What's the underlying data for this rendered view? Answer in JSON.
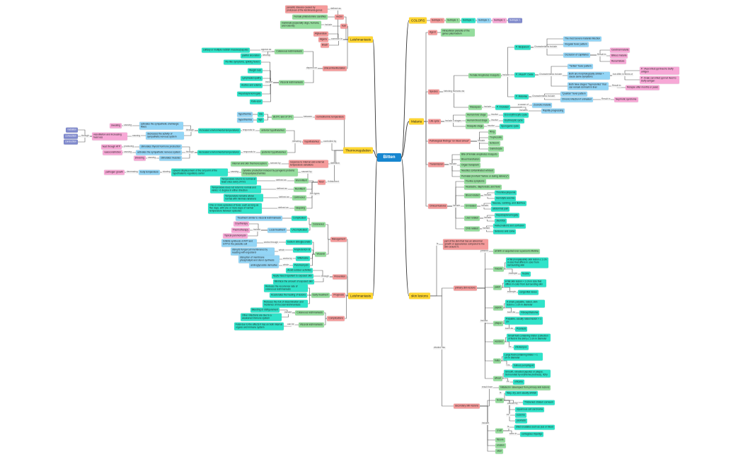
{
  "mindmap": {
    "nodes": {
      "bitten": "Bitten",
      "colors": "COLORS",
      "st1": "Subtopic 1",
      "st2": "Subtopic 1",
      "st3": "Subtopic 1",
      "st4": "Subtopic 1",
      "st5": "Subtopic 1",
      "st6": "Subtopic 1",
      "malaria": "Malaria",
      "skin": "skin lesions",
      "agent": "Agent",
      "agent_d": "intracellular parasite of the genus plasmodium",
      "species": "Species",
      "anoph": "Female Anopheles mosquito",
      "macaques": "Macaques",
      "pfalc": "P. falciparum",
      "pvivax": "P. Vivax/P. Ovale",
      "pmal": "P. Malariae",
      "pf1": "The most severe malarial infection",
      "pf2": "Irregular fever pattern",
      "pf3": "Occlusion of capillaries",
      "pf3a": "Cerebral malaria",
      "pf3b": "Bilious malaria",
      "pf3c": "Renal failure",
      "pv1": "\"Tertian\" fever pattern",
      "pv2": "Both are morphologically similar + cause same symptoms",
      "pv3": "Both have stages \"hypnozoites\" that can remain dormant in liver",
      "pv2a": "P. Vivax infect ppl lived to Duffy antigen",
      "pv2b": "P. Ovale can infect ppl not lived to Duffy antigen",
      "pv3a": "Relapse after months or years",
      "pm1": "\"Quartan\" fever pattern",
      "pm2": "Chronic infection if untreated",
      "pm2a": "Nephrotic syndrome",
      "pk": "P. Knowlesi",
      "pk1": "Zoonotic malaria",
      "pk2": "Rapidly progressing",
      "life": "Life cycle",
      "lc1": "Human liver stage",
      "lc2": "Human blood stage",
      "lc3": "Mosquito stage",
      "lc1a": "Exo-erythrocytic cycle",
      "lc2a": "Erythrocytic cycle",
      "lc3a": "Sporogonic cycle",
      "path": "Pathological findings \"on blood smear\"",
      "pa1": "Ring",
      "pa2": "Trophozoite",
      "pa3": "Schizont",
      "pa4": "Gametocyte",
      "trans": "Transmission",
      "tr1": "Bite of female anopheles mosquito",
      "tr2": "Blood transfusion",
      "tr3": "Organ transplant",
      "tr4": "Needles contaminated w/blood",
      "tr5": "Perinatal (in infant \"before or during delivery\")",
      "clin": "Clinical features",
      "cf1": "Flu-like symptoms",
      "cf2": "Headache, diaphoresis, and fever",
      "cf3": "Blood related",
      "cf3a": "Thrombocytopenia",
      "cf3b": "Hemolytic anemia",
      "cf4": "GI related",
      "cf4a": "Nausea, vomiting, and diarrhea",
      "cf4b": "abdominal pain",
      "cf5": "Liver related",
      "cf5a": "Hepatosplenomegaly",
      "cf5b": "Jaundice",
      "cf6": "CNS related",
      "cf6a": "Hallucinations and confusion",
      "cf6b": "Seizures and coma",
      "sk_d": "part of the skin that has an abnormal growth or appearance compared to the skin around it.",
      "prim": "primary skin lesions",
      "sec": "secondary skin lesions",
      "pr0": "at birth or acquired over a person's lifetime",
      "mac": "macule",
      "mac_d": "A flat (nonpalpable) skin lesion ≤ 1 cm in size that differs in color from surrounding skin",
      "mac_e": "freckle",
      "pat": "patch",
      "pat_d": "A flat skin lesion > 1 cm in size that differs in color from surrounding skin",
      "pat_e": "congenital nevus",
      "pap": "papule",
      "pap_d": "A small, palpable, raised, skin lesion ≤ 1 cm in diameter",
      "pap_e": "Fibroepithelioma",
      "pla": "plaque",
      "pla_d": "Palpable, usually raised lesion > 1 cm",
      "pla_e": "Psoriasis",
      "ves": "vesicles",
      "ves_d": "Small fluid-containing blister (collection of fluid in the skin) ≤ 1 cm in diameter",
      "ves_e": "chickenpox",
      "bul": "bulla",
      "bul_d": "Large fluid-containing blister > 1 cm in diameter",
      "bul_e": "bullous pemphigoid",
      "whe": "wheal",
      "whe_d": "Smooth, elevated papules or plaque. Surrounded by erythema (redness), itchy",
      "whe_e": "urticaria",
      "se0": "Initiated in /developed from primary skin lesions",
      "sca": "Scale",
      "sca_d": "flaky, dry, and usually whitish",
      "sca_c": "Thickened stratum corneum",
      "sca_e1": "squamous cell carcinoma",
      "sca_e2": "eczema",
      "sca_e3": "psoriasis",
      "cru": "crust",
      "cru_d": "dried exudates such as pus or blood",
      "cru_e": "contagious impetigo",
      "fis": "fissure",
      "ero": "erosion",
      "ulc": "ulcer",
      "leish1": "Leishmaniasis",
      "l_def": "parasitic disease caused by protozoan of the leishmania genus",
      "l_vec": "vector",
      "l_vec_d": "Female phlebotomine sandflies",
      "l_host": "host",
      "l_host_d": "mammals (especially dogs, humans, and rodents)",
      "l_afg": "Afghanistan",
      "l_alg": "Algeria",
      "l_bra": "Brazil",
      "l_clin": "clinical Manifestation",
      "l_cut": "Cutaneous leishmaniasis",
      "l_vis": "Visceral leishmaniasis",
      "l_cut1": "solitary or multiple reddish macules/papules",
      "l_cut2": "painful ulceration",
      "l_v1": "Flu-like symptoms, spiking fevers",
      "l_v2": "Weight loss",
      "l_v3": "Lymphadenopathy",
      "l_v4": "Ascites and edema",
      "l_v5": "Hepatosplenomegaly",
      "l_v6": "Kala-azar",
      "thermo": "Thermoregulation",
      "t_norm": "normothermic temperature",
      "t_range": "36.5ºC and 37.5ºC",
      "t_low": "low",
      "t_high": "high",
      "t_hypo": "hypothermia",
      "t_hyper": "hyperthermia",
      "t_hyp": "hypothalamus",
      "t_ant": "anterior hypothalamus",
      "t_post": "posterior hypothalamus",
      "t_inc": "increased environmental temperatures",
      "t_dec": "decreased environmental temperatures",
      "t_resp": "response to internal and external temperature variations",
      "t_rec": "internal and skin thermoreceptors",
      "t_fever": "fever",
      "t_cyt": "cytokine production induced by pyrogenic proteins in lipopolysaccharides",
      "t_up": "upward displacement of the set point of the hypothalamic regulatory center",
      "t_body": "body temperature",
      "t_path": "pathogen growth",
      "t_int": "intermittent",
      "t_int_d": "Temperature returns to normal at least once every 24 hrs",
      "t_rem": "Remittent",
      "t_rem_d": "Temperature does not return to normal and varies >1 degree in either direction",
      "t_con": "continuous",
      "t_con_d": "Temperature remains above normal with minimal variations",
      "t_rel": "relapsing",
      "t_rel_d": "One or more episodes of fever, each as long as five days, with one or more days of normal temperature between episodes",
      "t_sweat": "sweating",
      "t_sym": "activates the sympathetic cholinergic fibers",
      "t_dsym": "decreases the activity of sympathetic nervous system",
      "t_vaso": "vasodilation and increasing heat loss",
      "t_rad": "radiation",
      "t_conv": "convection",
      "t_cond": "conduction",
      "t_atp": "heat through ATP",
      "t_thy": "stimulates thyroid hormone production",
      "t_vcon": "vasoconstriction",
      "t_asns": "activates the sympathetic nervous system",
      "t_shiv": "shivering",
      "t_musc": "stimulates muscles",
      "leish2": "Leishmaniasis",
      "m_man": "Management",
      "m_cut": "Cutaneous",
      "m_comp": "Complicated",
      "m_comp_d": "Treatment similar to visceral leishmaniasis",
      "m_unc": "Uncomplicated",
      "m_local": "Local treatment",
      "m_cryo": "Cryotherapy",
      "m_thermo": "Thermotherapy",
      "m_topical": "Topical paromomycin",
      "m_vis": "Visceral",
      "m_ss": "Sodium stibogluconate",
      "m_ss_d": "Inhibits synthesis of ATP and GTP in the parasite cell",
      "m_amb": "Amphotericin B",
      "m_amb_d": "disrupts fungal cell membranes by reacting with ergosterol",
      "m_mil": "Miltefosine",
      "m_mil_d": "disruption of membrane phospholipid and sterol synthesis",
      "m_par": "Paromomycin",
      "m_par_d": "aminoglycoside derivative",
      "p_prev": "Prevention",
      "p1": "Avoid outdoor activities",
      "p2": "Apply insect repellent to exposed skin",
      "p3": "Minimize the amount of exposed skin",
      "g_prog": "Prognosis",
      "g_early": "Early treatment",
      "g1": "Reduces the recurrence rate of cutaneous leishmaniasis",
      "g2": "Accelerates the healing of lesions",
      "g3": "Reduces the risk of dissemination and incidence of mucosal leishmaniasis",
      "c_comp": "Complications",
      "c_cut": "Cutaneous leishmaniasis",
      "c_vis": "Visceral leishmaniasis",
      "c1": "Bleeding or disfigurement",
      "c2": "Other infections are due to a weakened immune system",
      "c3": "Fatal due to the effects it has on both internal organs and immune system"
    },
    "labels": {
      "defined_as": "defined as",
      "include": "include",
      "common_in": "common in",
      "depend_on": "depend on",
      "appear_as": "appear as",
      "develop": "develop",
      "infecting": "infecting humans via",
      "char_include": "Characteristics include",
      "result_in": "Result in",
      "but_differ": "but differ in terms of",
      "include_3": "include 3 stages",
      "involve": "involve",
      "is": "is",
      "divided_into": "divided into",
      "present": "present",
      "example": "example",
      "such_as": "such as",
      "ex": "ex.",
      "result_from": "result from",
      "caused_by": "caused by",
      "seen_in": "seen in",
      "between": "between",
      "controlled_by": "controlled by",
      "including": "including",
      "responds_to": "responds to",
      "definition": "definition",
      "sensed_by": "sensed by",
      "if_disturbed": "if disturbed",
      "five_types": "five types",
      "through": "through",
      "causing": "causing",
      "producing": "producing",
      "decreasing": "decreasing",
      "slowing": "slowing",
      "works_through": "works through",
      "which": "which",
      "works_by": "works by",
      "can_be": "can be",
      "a_cause_of": "a cause of",
      "includes": "includes"
    },
    "colors": {
      "yellow": "#ffd632",
      "red": "#f59b9b",
      "green": "#95dd9d",
      "teal": "#2fe3c9",
      "blue": "#93d5f6",
      "pink": "#f7a8d6",
      "purple": "#7f89cc",
      "center": "#1686d0"
    }
  }
}
